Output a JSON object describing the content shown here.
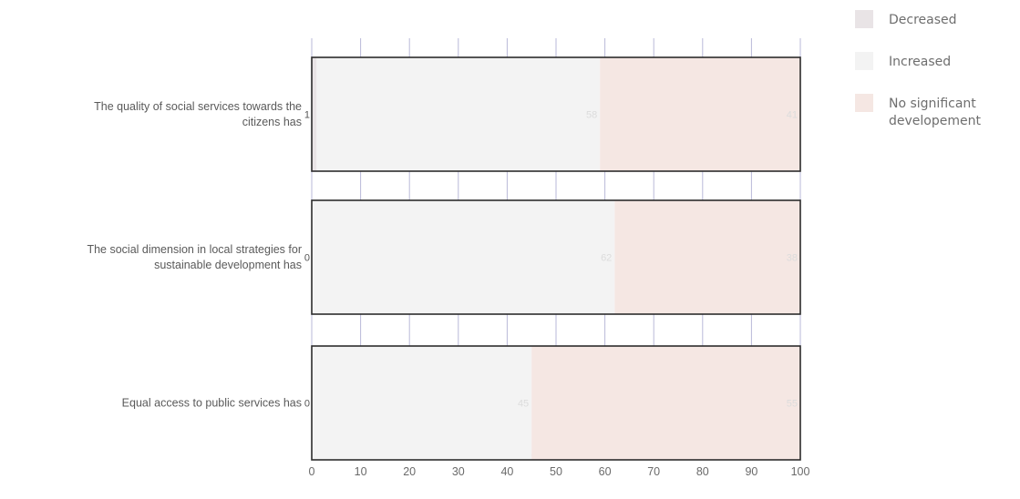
{
  "chart_data": {
    "type": "bar",
    "orientation": "horizontal",
    "stacked": true,
    "title": "",
    "xlabel": "",
    "ylabel": "",
    "xlim": [
      0,
      100
    ],
    "x_ticks": [
      "0",
      "10",
      "20",
      "30",
      "40",
      "50",
      "60",
      "70",
      "80",
      "90",
      "100"
    ],
    "grid": true,
    "legend_position": "top-right",
    "categories": [
      {
        "lines": [
          "The quality of social services towards the",
          "citizens has"
        ]
      },
      {
        "lines": [
          "The social dimension in local strategies for",
          "sustainable development has"
        ]
      },
      {
        "lines": [
          "Equal access to public services has"
        ]
      }
    ],
    "series": [
      {
        "name": "Decreased",
        "color": "#e9e4e6",
        "values": [
          1,
          0,
          0
        ],
        "labels": [
          "1",
          "0",
          "0"
        ]
      },
      {
        "name": "Increased",
        "color": "#f3f3f3",
        "values": [
          58,
          62,
          45
        ],
        "labels": [
          "58",
          "62",
          "45"
        ]
      },
      {
        "name": "No significant developement",
        "color": "#f5e7e3",
        "values": [
          41,
          38,
          55
        ],
        "labels": [
          "41",
          "38",
          "55"
        ]
      }
    ]
  },
  "legend": {
    "items": [
      {
        "label": "Decreased",
        "color": "#e9e4e6"
      },
      {
        "label": "Increased",
        "color": "#f3f3f3"
      },
      {
        "label": [
          "No significant",
          "developement"
        ],
        "color": "#f5e7e3"
      }
    ]
  }
}
